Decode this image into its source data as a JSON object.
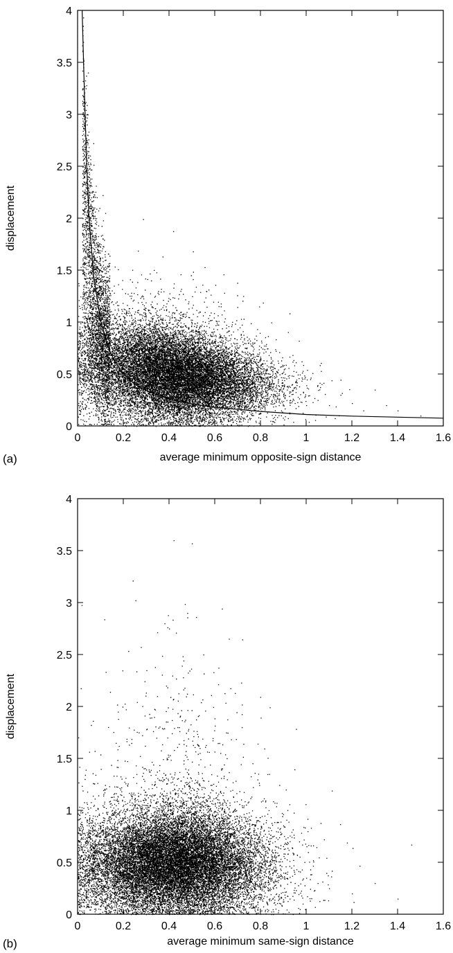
{
  "chart_data": [
    {
      "type": "scatter",
      "panel_label": "(a)",
      "xlabel": "average minimum opposite-sign distance",
      "ylabel": "displacement",
      "xlim": [
        0,
        1.6
      ],
      "ylim": [
        0,
        4
      ],
      "x_ticks": [
        "0",
        "0.2",
        "0.4",
        "0.6",
        "0.8",
        "1",
        "1.2",
        "1.4",
        "1.6"
      ],
      "y_ticks": [
        "0",
        "0.5",
        "1",
        "1.5",
        "2",
        "2.5",
        "3",
        "3.5",
        "4"
      ],
      "grid": false,
      "series": [
        {
          "kind": "points",
          "x": [
            0.02,
            0.03,
            0.05,
            0.06,
            0.04,
            0.08,
            0.07,
            0.1,
            0.12,
            0.15,
            0.09,
            0.11,
            0.14,
            0.18,
            0.2,
            0.22,
            0.25,
            0.28,
            0.3,
            0.33,
            0.35,
            0.38,
            0.4,
            0.42,
            0.45,
            0.48,
            0.5,
            0.52,
            0.55,
            0.58,
            0.6,
            0.63,
            0.65,
            0.68,
            0.7,
            0.73,
            0.75,
            0.78,
            0.8,
            0.83,
            0.85,
            0.88,
            0.9,
            0.93,
            0.95,
            0.98,
            1.0,
            1.05,
            1.1,
            1.15,
            1.2,
            1.25,
            1.3,
            1.35,
            1.4,
            1.5
          ],
          "y": [
            2.8,
            2.4,
            2.5,
            2.2,
            2.0,
            1.8,
            1.6,
            1.5,
            1.3,
            1.2,
            0.9,
            1.0,
            0.8,
            0.7,
            0.6,
            0.65,
            0.55,
            0.5,
            0.5,
            0.45,
            0.48,
            0.42,
            0.4,
            0.45,
            0.38,
            0.4,
            0.36,
            0.38,
            0.35,
            0.34,
            0.32,
            0.33,
            0.3,
            0.31,
            0.3,
            0.28,
            0.29,
            0.27,
            0.26,
            0.27,
            0.25,
            0.26,
            0.24,
            0.25,
            0.22,
            0.23,
            0.2,
            0.25,
            0.2,
            0.3,
            0.22,
            0.15,
            0.35,
            0.2,
            0.15,
            0.1
          ],
          "count_approx": 20000
        },
        {
          "kind": "fit-curve",
          "x": [
            0.02,
            0.03,
            0.04,
            0.05,
            0.07,
            0.1,
            0.13,
            0.16,
            0.2,
            0.25,
            0.3,
            0.4,
            0.5,
            0.6,
            0.8,
            1.0,
            1.2,
            1.4,
            1.6
          ],
          "y": [
            4.0,
            3.2,
            2.5,
            2.0,
            1.45,
            1.02,
            0.78,
            0.63,
            0.5,
            0.4,
            0.34,
            0.26,
            0.21,
            0.18,
            0.14,
            0.11,
            0.095,
            0.085,
            0.075
          ]
        }
      ]
    },
    {
      "type": "scatter",
      "panel_label": "(b)",
      "xlabel": "average minimum same-sign distance",
      "ylabel": "displacement",
      "xlim": [
        0,
        1.6
      ],
      "ylim": [
        0,
        4
      ],
      "x_ticks": [
        "0",
        "0.2",
        "0.4",
        "0.6",
        "0.8",
        "1",
        "1.2",
        "1.4",
        "1.6"
      ],
      "y_ticks": [
        "0",
        "0.5",
        "1",
        "1.5",
        "2",
        "2.5",
        "3",
        "3.5",
        "4"
      ],
      "grid": false,
      "series": [
        {
          "kind": "points",
          "x": [
            0.05,
            0.1,
            0.15,
            0.2,
            0.25,
            0.3,
            0.35,
            0.38,
            0.4,
            0.42,
            0.45,
            0.48,
            0.5,
            0.52,
            0.55,
            0.6,
            0.65,
            0.7,
            0.75,
            0.8,
            0.85,
            0.9,
            0.95,
            1.0,
            1.05,
            1.1,
            1.2,
            1.3,
            1.4,
            1.46
          ],
          "y": [
            0.3,
            0.4,
            0.45,
            0.5,
            0.55,
            0.6,
            0.7,
            2.8,
            2.75,
            3.6,
            0.6,
            2.9,
            3.57,
            0.55,
            2.5,
            0.5,
            0.45,
            0.5,
            0.4,
            0.45,
            0.35,
            0.4,
            0.3,
            0.35,
            0.3,
            0.25,
            0.2,
            0.3,
            0.15,
            0.67
          ],
          "count_approx": 20000
        }
      ]
    }
  ]
}
